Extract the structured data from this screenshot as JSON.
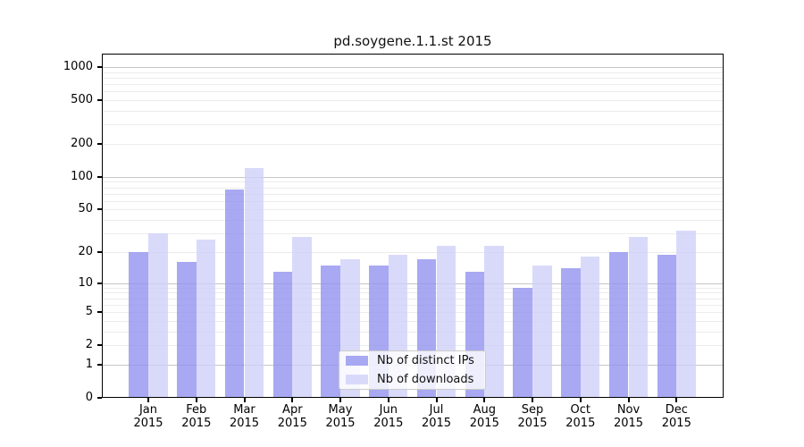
{
  "chart_data": {
    "type": "bar",
    "title": "pd.soygene.1.1.st 2015",
    "year_label": "2015",
    "categories": [
      "Jan",
      "Feb",
      "Mar",
      "Apr",
      "May",
      "Jun",
      "Jul",
      "Aug",
      "Sep",
      "Oct",
      "Nov",
      "Dec"
    ],
    "series": [
      {
        "name": "Nb of distinct IPs",
        "color": "#8f91ee",
        "values": [
          20,
          16,
          77,
          13,
          15,
          15,
          17,
          13,
          9,
          14,
          20,
          19
        ]
      },
      {
        "name": "Nb of downloads",
        "color": "#cecff8",
        "values": [
          30,
          26,
          120,
          28,
          17,
          19,
          23,
          23,
          15,
          18,
          28,
          32
        ]
      }
    ],
    "scale": "log10(1+y), zero at baseline",
    "yticks": [
      1000,
      500,
      200,
      100,
      50,
      20,
      10,
      5,
      2,
      1,
      0
    ],
    "ylim": [
      0,
      1320
    ],
    "xlabel": "",
    "ylabel": "",
    "grid": "horizontal; dark lines at powers of 10, faint minor lines at 2-9 per decade",
    "legend": {
      "labels": [
        "Nb of distinct IPs",
        "Nb of downloads"
      ],
      "position": "inside bottom center"
    },
    "colors": {
      "grid_major": "#c6c6c6",
      "grid_minor": "#ececec",
      "axis": "#000000",
      "legend_border": "#cccccc",
      "bar_opacity": 0.78
    }
  }
}
